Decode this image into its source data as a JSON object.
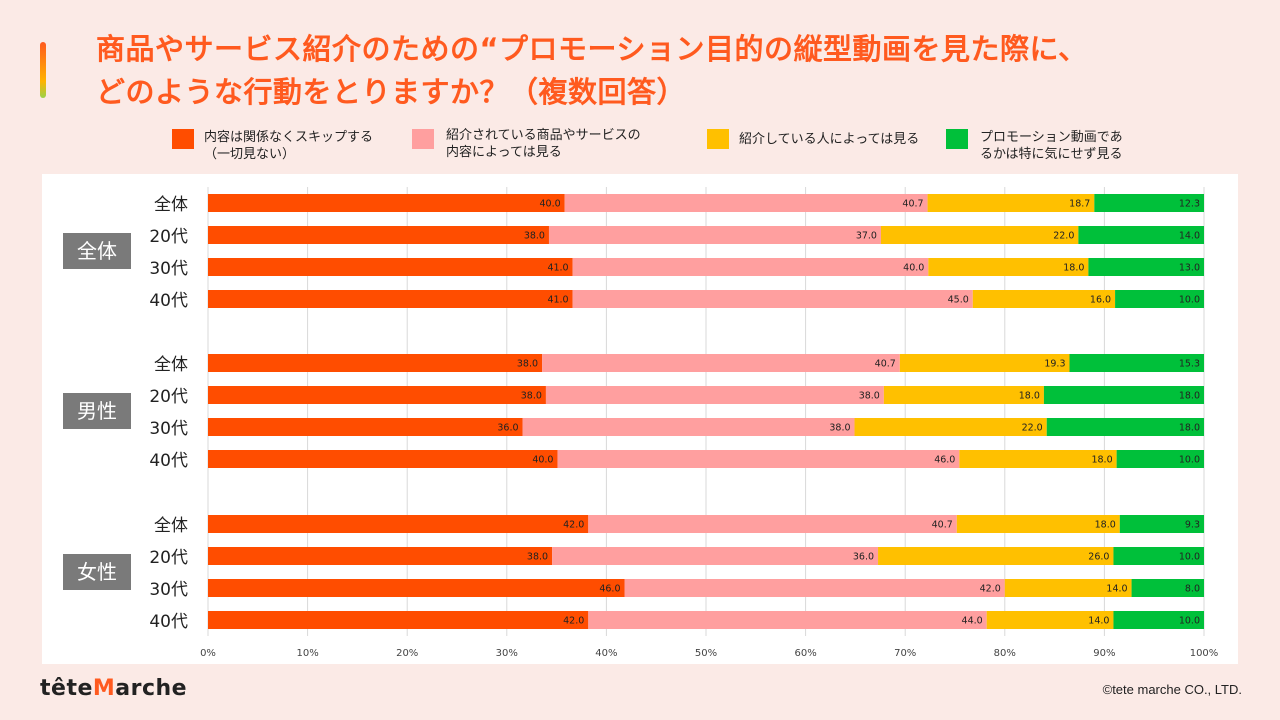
{
  "title": {
    "line1": "商品やサービス紹介のための“プロモーション目的の縦型動画を見た際に、",
    "line2": "どのような行動をとりますか？（複数回答）"
  },
  "colors": {
    "accent": "#ff5a1f",
    "grid": "#d9d9d9",
    "group_label_bg": "#7a7a7a"
  },
  "footer": {
    "logo_pre": "tête",
    "logo_m": "M",
    "logo_post": "arche",
    "copyright": "©tete marche CO., LTD."
  },
  "chart_data": {
    "type": "bar",
    "orientation": "horizontal",
    "stacked": true,
    "xlim": [
      0,
      100
    ],
    "x_ticks": [
      "0%",
      "10%",
      "20%",
      "30%",
      "40%",
      "50%",
      "60%",
      "70%",
      "80%",
      "90%",
      "100%"
    ],
    "grid": true,
    "legend_position": "top",
    "series": [
      {
        "name": "内容は関係なくスキップする\n（一切見ない）",
        "color": "#ff4d00"
      },
      {
        "name": "紹介されている商品やサービスの\n内容によっては見る",
        "color": "#ff9f9f"
      },
      {
        "name": "紹介している人によっては見る",
        "color": "#ffc000"
      },
      {
        "name": "プロモーション動画であ\nるかは特に気にせず見る",
        "color": "#00c03a"
      }
    ],
    "groups": [
      {
        "label": "全体",
        "rows": [
          {
            "label": "全体",
            "values": [
              40.0,
              40.7,
              18.7,
              12.3
            ]
          },
          {
            "label": "20代",
            "values": [
              38.0,
              37.0,
              22.0,
              14.0
            ]
          },
          {
            "label": "30代",
            "values": [
              41.0,
              40.0,
              18.0,
              13.0
            ]
          },
          {
            "label": "40代",
            "values": [
              41.0,
              45.0,
              16.0,
              10.0
            ]
          }
        ]
      },
      {
        "label": "男性",
        "rows": [
          {
            "label": "全体",
            "values": [
              38.0,
              40.7,
              19.3,
              15.3
            ]
          },
          {
            "label": "20代",
            "values": [
              38.0,
              38.0,
              18.0,
              18.0
            ]
          },
          {
            "label": "30代",
            "values": [
              36.0,
              38.0,
              22.0,
              18.0
            ]
          },
          {
            "label": "40代",
            "values": [
              40.0,
              46.0,
              18.0,
              10.0
            ]
          }
        ]
      },
      {
        "label": "女性",
        "rows": [
          {
            "label": "全体",
            "values": [
              42.0,
              40.7,
              18.0,
              9.3
            ]
          },
          {
            "label": "20代",
            "values": [
              38.0,
              36.0,
              26.0,
              10.0
            ]
          },
          {
            "label": "30代",
            "values": [
              46.0,
              42.0,
              14.0,
              8.0
            ]
          },
          {
            "label": "40代",
            "values": [
              42.0,
              44.0,
              14.0,
              10.0
            ]
          }
        ]
      }
    ]
  }
}
